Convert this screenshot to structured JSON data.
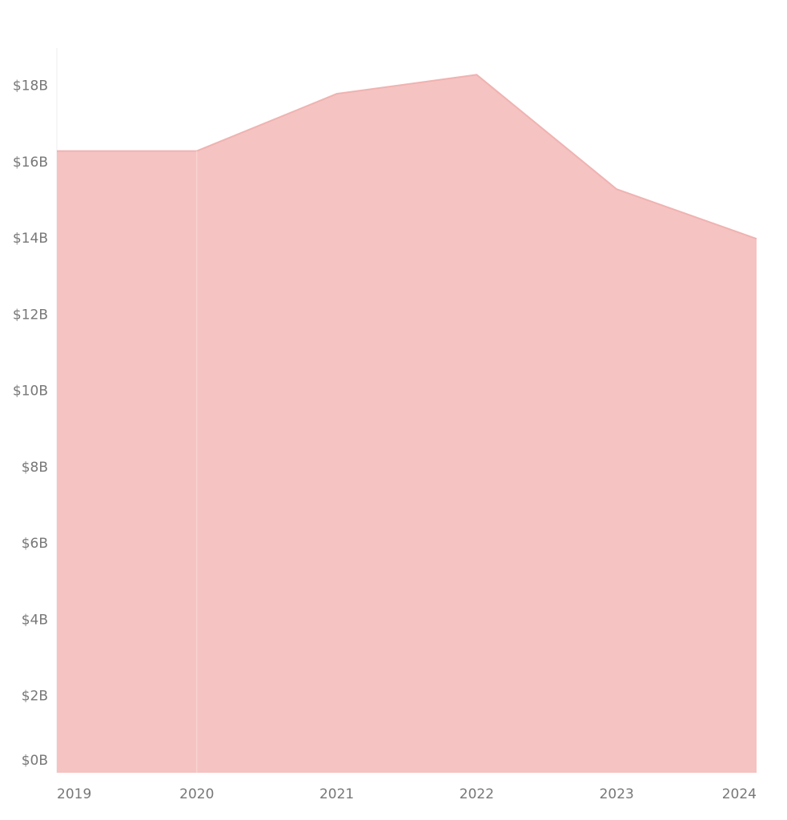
{
  "chart_data": {
    "type": "area",
    "categories": [
      "2019",
      "2020",
      "2021",
      "2022",
      "2023",
      "2024"
    ],
    "values": [
      16300000000,
      16300000000,
      17800000000,
      18300000000,
      15300000000,
      14000000000
    ],
    "color": "#f5c3c2",
    "ylim": [
      0,
      19000000000
    ],
    "yticks": [
      {
        "value": 0,
        "label": "$0B"
      },
      {
        "value": 2000000000,
        "label": "$2B"
      },
      {
        "value": 4000000000,
        "label": "$4B"
      },
      {
        "value": 6000000000,
        "label": "$6B"
      },
      {
        "value": 8000000000,
        "label": "$8B"
      },
      {
        "value": 10000000000,
        "label": "$10B"
      },
      {
        "value": 12000000000,
        "label": "$12B"
      },
      {
        "value": 14000000000,
        "label": "$14B"
      },
      {
        "value": 16000000000,
        "label": "$16B"
      },
      {
        "value": 18000000000,
        "label": "$18B"
      }
    ]
  }
}
